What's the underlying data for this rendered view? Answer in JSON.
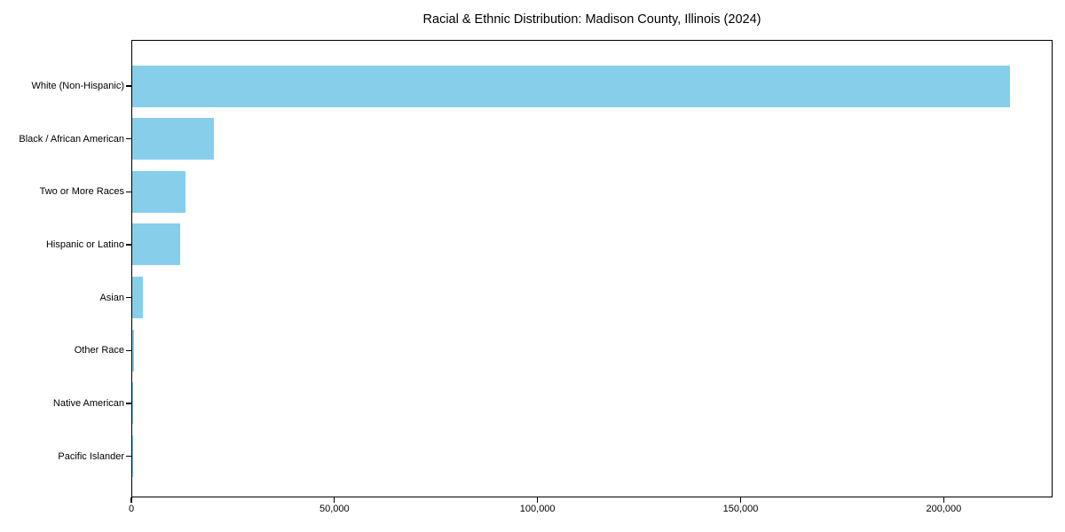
{
  "chart_data": {
    "type": "bar",
    "orientation": "horizontal",
    "title": "Racial & Ethnic Distribution: Madison County, Illinois (2024)",
    "categories": [
      "White (Non-Hispanic)",
      "Black / African American",
      "Two or More Races",
      "Hispanic or Latino",
      "Asian",
      "Other Race",
      "Native American",
      "Pacific Islander"
    ],
    "values": [
      216000,
      20100,
      13100,
      11800,
      2600,
      500,
      300,
      80
    ],
    "bar_color": "#87CEEB",
    "xlabel": "",
    "ylabel": "",
    "xlim": [
      0,
      226800
    ],
    "xticks": [
      {
        "value": 0,
        "label": "0"
      },
      {
        "value": 50000,
        "label": "50,000"
      },
      {
        "value": 100000,
        "label": "100,000"
      },
      {
        "value": 150000,
        "label": "150,000"
      },
      {
        "value": 200000,
        "label": "200,000"
      }
    ],
    "grid": false,
    "legend": "none",
    "frame_color": "#000000",
    "text_color": "#000000",
    "background_color": "#ffffff"
  }
}
